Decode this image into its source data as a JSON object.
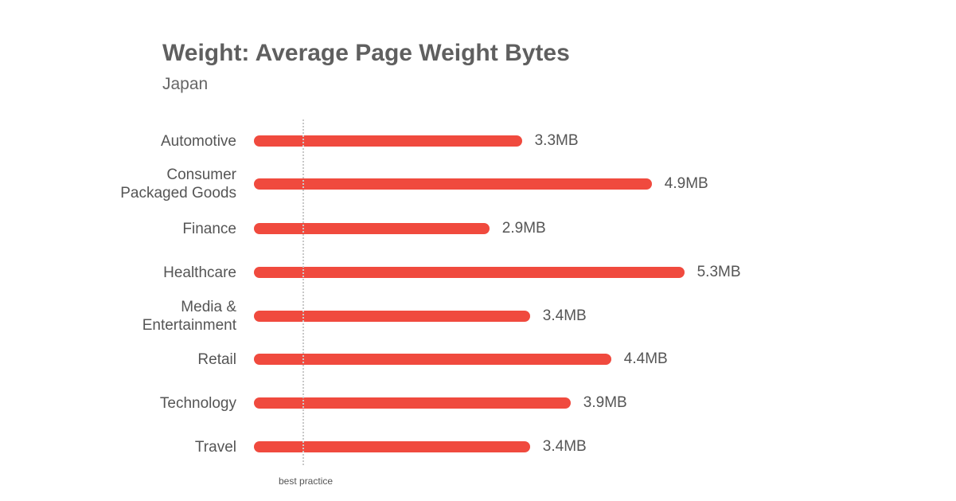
{
  "chart_data": {
    "type": "bar",
    "orientation": "horizontal",
    "title": "Weight: Average Page Weight Bytes",
    "subtitle": "Japan",
    "categories": [
      "Automotive",
      "Consumer\nPackaged Goods",
      "Finance",
      "Healthcare",
      "Media &\nEntertainment",
      "Retail",
      "Technology",
      "Travel"
    ],
    "values": [
      3.3,
      4.9,
      2.9,
      5.3,
      3.4,
      4.4,
      3.9,
      3.4
    ],
    "value_labels": [
      "3.3MB",
      "4.9MB",
      "2.9MB",
      "5.3MB",
      "3.4MB",
      "4.4MB",
      "3.9MB",
      "3.4MB"
    ],
    "unit": "MB",
    "xlim": [
      0,
      6
    ],
    "grid": false,
    "reference_line": {
      "label": "best practice",
      "value": 0.6
    },
    "bar_color": "#f04a3e"
  }
}
